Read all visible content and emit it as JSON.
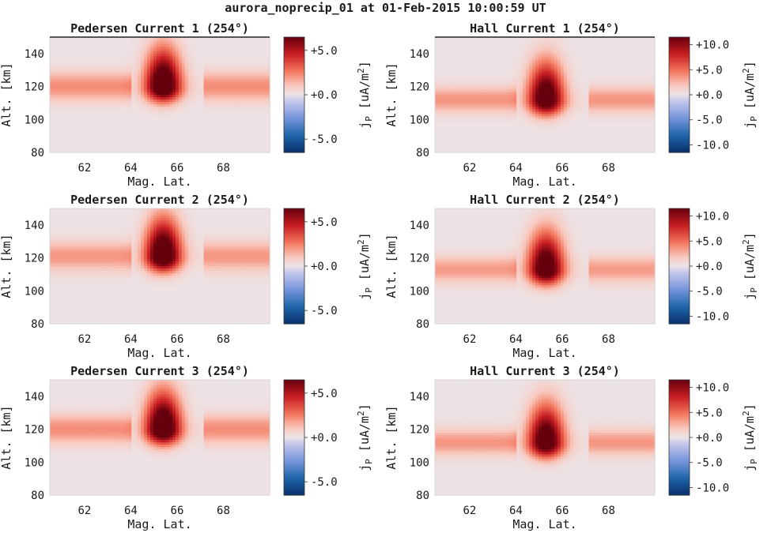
{
  "suptitle": "aurora_noprecip_01 at 01-Feb-2015 10:00:59 UT",
  "colormap": {
    "name": "red-white-blue diverging",
    "low": "#08306b",
    "mid": "#ede3e6",
    "high": "#67000d"
  },
  "chart_data": [
    {
      "type": "heatmap",
      "title": "Pedersen Current 1 (254°)",
      "xlabel": "Mag. Lat.",
      "ylabel": "Alt. [km]",
      "xlim": [
        60.5,
        70
      ],
      "ylim": [
        80,
        150
      ],
      "xticks": [
        "62",
        "64",
        "66",
        "68"
      ],
      "yticks": [
        "80",
        "100",
        "120",
        "140"
      ],
      "colorbar": {
        "label": "j_P [uA/m^2]",
        "label_main": "j",
        "label_sub": "P",
        "label_rest": " [uA/m",
        "label_sup": "2",
        "label_end": "]",
        "clim": [
          -6.5,
          6.5
        ],
        "ticks": [
          "+5.0",
          "+0.0",
          "-5.0"
        ],
        "tick_values": [
          5,
          0,
          -5
        ]
      },
      "field": {
        "band_alt_km": 120,
        "band_width_km": 9,
        "band_value": 2.2,
        "gap_lat": [
          64,
          67.2
        ],
        "peak_lat": 65.4,
        "peak_alt_km": 120,
        "peak_value": 8.5
      }
    },
    {
      "type": "heatmap",
      "title": "Hall Current 1 (254°)",
      "xlabel": "Mag. Lat.",
      "ylabel": "Alt. [km]",
      "xlim": [
        60.5,
        70
      ],
      "ylim": [
        80,
        150
      ],
      "xticks": [
        "62",
        "64",
        "66",
        "68"
      ],
      "yticks": [
        "80",
        "100",
        "120",
        "140"
      ],
      "colorbar": {
        "label": "j_P [uA/m^2]",
        "label_main": "j",
        "label_sub": "P",
        "label_rest": " [uA/m",
        "label_sup": "2",
        "label_end": "]",
        "clim": [
          -11.5,
          11.5
        ],
        "ticks": [
          "+10.0",
          "+5.0",
          "+0.0",
          "-5.0",
          "-10.0"
        ],
        "tick_values": [
          10,
          5,
          0,
          -5,
          -10
        ]
      },
      "field": {
        "band_alt_km": 112,
        "band_width_km": 8,
        "band_value": 3.6,
        "gap_lat": [
          64,
          67.2
        ],
        "peak_lat": 65.3,
        "peak_alt_km": 112,
        "peak_value": 14
      }
    },
    {
      "type": "heatmap",
      "title": "Pedersen Current 2 (254°)",
      "xlabel": "Mag. Lat.",
      "ylabel": "Alt. [km]",
      "xlim": [
        60.5,
        70
      ],
      "ylim": [
        80,
        150
      ],
      "xticks": [
        "62",
        "64",
        "66",
        "68"
      ],
      "yticks": [
        "80",
        "100",
        "120",
        "140"
      ],
      "colorbar": {
        "label": "j_P [uA/m^2]",
        "label_main": "j",
        "label_sub": "P",
        "label_rest": " [uA/m",
        "label_sup": "2",
        "label_end": "]",
        "clim": [
          -6.5,
          6.5
        ],
        "ticks": [
          "+5.0",
          "+0.0",
          "-5.0"
        ],
        "tick_values": [
          5,
          0,
          -5
        ]
      },
      "field": {
        "band_alt_km": 121,
        "band_width_km": 9,
        "band_value": 2.0,
        "gap_lat": [
          64,
          67.2
        ],
        "peak_lat": 65.4,
        "peak_alt_km": 121,
        "peak_value": 8.5
      }
    },
    {
      "type": "heatmap",
      "title": "Hall Current 2 (254°)",
      "xlabel": "Mag. Lat.",
      "ylabel": "Alt. [km]",
      "xlim": [
        60.5,
        70
      ],
      "ylim": [
        80,
        150
      ],
      "xticks": [
        "62",
        "64",
        "66",
        "68"
      ],
      "yticks": [
        "80",
        "100",
        "120",
        "140"
      ],
      "colorbar": {
        "label": "j_P [uA/m^2]",
        "label_main": "j",
        "label_sub": "P",
        "label_rest": " [uA/m",
        "label_sup": "2",
        "label_end": "]",
        "clim": [
          -11.5,
          11.5
        ],
        "ticks": [
          "+10.0",
          "+5.0",
          "+0.0",
          "-5.0",
          "-10.0"
        ],
        "tick_values": [
          10,
          5,
          0,
          -5,
          -10
        ]
      },
      "field": {
        "band_alt_km": 113,
        "band_width_km": 8,
        "band_value": 3.4,
        "gap_lat": [
          64,
          67.2
        ],
        "peak_lat": 65.3,
        "peak_alt_km": 113,
        "peak_value": 14
      }
    },
    {
      "type": "heatmap",
      "title": "Pedersen Current 3 (254°)",
      "xlabel": "Mag. Lat.",
      "ylabel": "Alt. [km]",
      "xlim": [
        60.5,
        70
      ],
      "ylim": [
        80,
        150
      ],
      "xticks": [
        "62",
        "64",
        "66",
        "68"
      ],
      "yticks": [
        "80",
        "100",
        "120",
        "140"
      ],
      "colorbar": {
        "label": "j_P [uA/m^2]",
        "label_main": "j",
        "label_sub": "P",
        "label_rest": " [uA/m",
        "label_sup": "2",
        "label_end": "]",
        "clim": [
          -6.5,
          6.5
        ],
        "ticks": [
          "+5.0",
          "+0.0",
          "-5.0"
        ],
        "tick_values": [
          5,
          0,
          -5
        ]
      },
      "field": {
        "band_alt_km": 120,
        "band_width_km": 9,
        "band_value": 2.2,
        "gap_lat": [
          64,
          67.2
        ],
        "peak_lat": 65.4,
        "peak_alt_km": 120,
        "peak_value": 8.5
      }
    },
    {
      "type": "heatmap",
      "title": "Hall Current 3 (254°)",
      "xlabel": "Mag. Lat.",
      "ylabel": "Alt. [km]",
      "xlim": [
        60.5,
        70
      ],
      "ylim": [
        80,
        150
      ],
      "xticks": [
        "62",
        "64",
        "66",
        "68"
      ],
      "yticks": [
        "80",
        "100",
        "120",
        "140"
      ],
      "colorbar": {
        "label": "j_P [uA/m^2]",
        "label_main": "j",
        "label_sub": "P",
        "label_rest": " [uA/m",
        "label_sup": "2",
        "label_end": "]",
        "clim": [
          -11.5,
          11.5
        ],
        "ticks": [
          "+10.0",
          "+5.0",
          "+0.0",
          "-5.0",
          "-10.0"
        ],
        "tick_values": [
          10,
          5,
          0,
          -5,
          -10
        ]
      },
      "field": {
        "band_alt_km": 112,
        "band_width_km": 8,
        "band_value": 3.6,
        "gap_lat": [
          64,
          67.2
        ],
        "peak_lat": 65.3,
        "peak_alt_km": 112,
        "peak_value": 14
      }
    }
  ]
}
